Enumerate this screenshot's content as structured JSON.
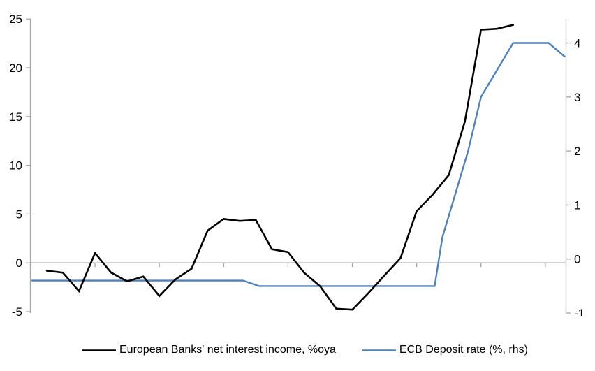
{
  "chart_data": {
    "type": "line",
    "title": "",
    "legend_position": "bottom",
    "grid": "zero-line-only",
    "background": "#ffffff",
    "axis_color": "#A6A6A6",
    "x_axis": {
      "min": 16,
      "max": 24.35,
      "ticks": [
        16,
        17,
        18,
        19,
        20,
        21,
        22,
        23,
        24
      ]
    },
    "y_axis_left": {
      "min": -5,
      "max": 25.2,
      "ticks": [
        -5,
        0,
        5,
        10,
        15,
        20,
        25
      ]
    },
    "y_axis_right": {
      "min": -1,
      "max": 4.45,
      "ticks": [
        -1,
        0,
        1,
        2,
        3,
        4
      ]
    },
    "series": [
      {
        "name": "European Banks' net interest income, %oya",
        "axis": "left",
        "color": "#000000",
        "points": [
          [
            16.25,
            -0.8
          ],
          [
            16.5,
            -1.0
          ],
          [
            16.75,
            -2.9
          ],
          [
            17.0,
            1.0
          ],
          [
            17.25,
            -1.0
          ],
          [
            17.5,
            -1.9
          ],
          [
            17.75,
            -1.4
          ],
          [
            18.0,
            -3.4
          ],
          [
            18.25,
            -1.7
          ],
          [
            18.5,
            -0.6
          ],
          [
            18.75,
            3.3
          ],
          [
            19.0,
            4.5
          ],
          [
            19.25,
            4.3
          ],
          [
            19.5,
            4.4
          ],
          [
            19.75,
            1.4
          ],
          [
            20.0,
            1.1
          ],
          [
            20.25,
            -1.0
          ],
          [
            20.5,
            -2.4
          ],
          [
            20.75,
            -4.7
          ],
          [
            21.0,
            -4.8
          ],
          [
            21.25,
            -3.1
          ],
          [
            21.5,
            -1.3
          ],
          [
            21.75,
            0.5
          ],
          [
            22.0,
            5.3
          ],
          [
            22.25,
            7.0
          ],
          [
            22.5,
            9.0
          ],
          [
            22.75,
            14.5
          ],
          [
            23.0,
            23.9
          ],
          [
            23.25,
            24.0
          ],
          [
            23.5,
            24.4
          ]
        ]
      },
      {
        "name": "ECB Deposit rate (%, rhs)",
        "axis": "right",
        "color": "#4F81BD",
        "points": [
          [
            16.02,
            -0.4
          ],
          [
            19.3,
            -0.4
          ],
          [
            19.55,
            -0.5
          ],
          [
            22.28,
            -0.5
          ],
          [
            22.4,
            0.4
          ],
          [
            22.8,
            2.0
          ],
          [
            23.0,
            3.0
          ],
          [
            23.25,
            3.5
          ],
          [
            23.5,
            4.0
          ],
          [
            24.05,
            4.0
          ],
          [
            24.3,
            3.75
          ]
        ]
      }
    ]
  }
}
